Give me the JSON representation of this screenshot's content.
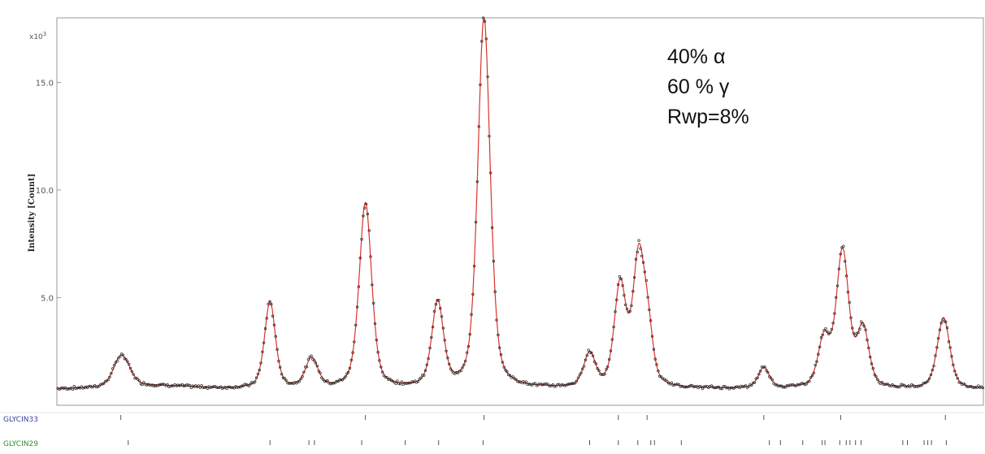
{
  "chart_data": {
    "type": "line",
    "title": "",
    "xlabel": "",
    "ylabel": "Intensity [Count]",
    "y_multiplier": "x10^3",
    "ylim": [
      0,
      18.0
    ],
    "xlim": [
      0,
      100
    ],
    "y_ticks": [
      "5.0",
      "10.0",
      "15.0"
    ],
    "grid": false,
    "annotations": [
      "40% α",
      "60 % γ",
      "Rwp=8%"
    ],
    "colors": {
      "calc": "#d9342b",
      "obs": "#222222",
      "phase1": "#3b3b9c",
      "phase2": "#2e8b2e"
    },
    "series": [
      {
        "kind": "calculated",
        "peaks": [
          {
            "x": 6.8,
            "h": 1.2,
            "w": 0.9
          },
          {
            "x": 7.6,
            "h": 0.45,
            "w": 0.8
          },
          {
            "x": 23.0,
            "h": 4.0,
            "w": 0.7
          },
          {
            "x": 27.5,
            "h": 1.35,
            "w": 0.8
          },
          {
            "x": 33.3,
            "h": 8.6,
            "w": 0.8
          },
          {
            "x": 41.1,
            "h": 3.9,
            "w": 0.75
          },
          {
            "x": 46.1,
            "h": 17.2,
            "w": 0.8
          },
          {
            "x": 57.5,
            "h": 1.55,
            "w": 0.75
          },
          {
            "x": 60.8,
            "h": 4.7,
            "w": 0.75
          },
          {
            "x": 62.8,
            "h": 5.9,
            "w": 0.75
          },
          {
            "x": 63.8,
            "h": 2.2,
            "w": 0.65
          },
          {
            "x": 76.3,
            "h": 0.95,
            "w": 0.7
          },
          {
            "x": 82.8,
            "h": 2.2,
            "w": 0.75
          },
          {
            "x": 84.8,
            "h": 6.3,
            "w": 0.8
          },
          {
            "x": 87.0,
            "h": 2.7,
            "w": 0.75
          },
          {
            "x": 95.7,
            "h": 3.3,
            "w": 0.8
          }
        ],
        "baseline": 0.75
      }
    ],
    "phases": [
      {
        "name": "GLYCIN33",
        "reflections": [
          6.9,
          33.3,
          46.1,
          60.6,
          63.7,
          76.3,
          84.6,
          95.9
        ]
      },
      {
        "name": "GLYCIN29",
        "reflections": [
          7.7,
          23.0,
          27.2,
          27.8,
          32.9,
          37.6,
          41.2,
          46.0,
          57.5,
          60.6,
          62.7,
          64.1,
          64.5,
          67.4,
          76.9,
          78.1,
          80.5,
          82.6,
          82.9,
          84.5,
          85.2,
          85.6,
          86.2,
          86.8,
          91.3,
          91.8,
          93.6,
          94.0,
          94.4,
          96.0
        ]
      }
    ]
  }
}
